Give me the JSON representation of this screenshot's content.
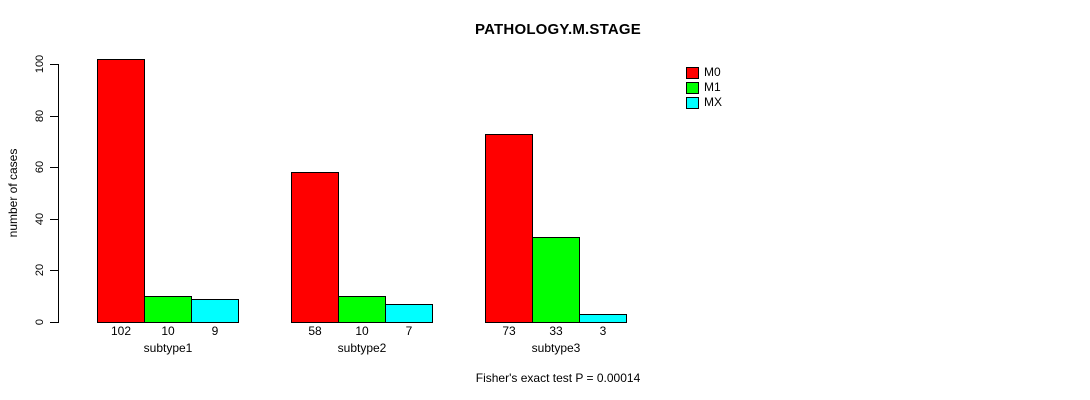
{
  "chart_data": {
    "type": "bar",
    "title": "PATHOLOGY.M.STAGE",
    "xlabel": "",
    "ylabel": "number of cases",
    "categories": [
      "subtype1",
      "subtype2",
      "subtype3"
    ],
    "series": [
      {
        "name": "M0",
        "color": "#ff0000",
        "values": [
          102,
          58,
          73
        ]
      },
      {
        "name": "M1",
        "color": "#00ff00",
        "values": [
          10,
          10,
          33
        ]
      },
      {
        "name": "MX",
        "color": "#00ffff",
        "values": [
          9,
          7,
          3
        ]
      }
    ],
    "yticks": [
      0,
      20,
      40,
      60,
      80,
      100
    ],
    "ylim": [
      0,
      105
    ],
    "grid": false,
    "legend_position": "top-right",
    "legend_labels": [
      "M0",
      "M1",
      "MX"
    ],
    "bar_value_labels": true,
    "annotation": "Fisher's exact test P = 0.00014"
  }
}
